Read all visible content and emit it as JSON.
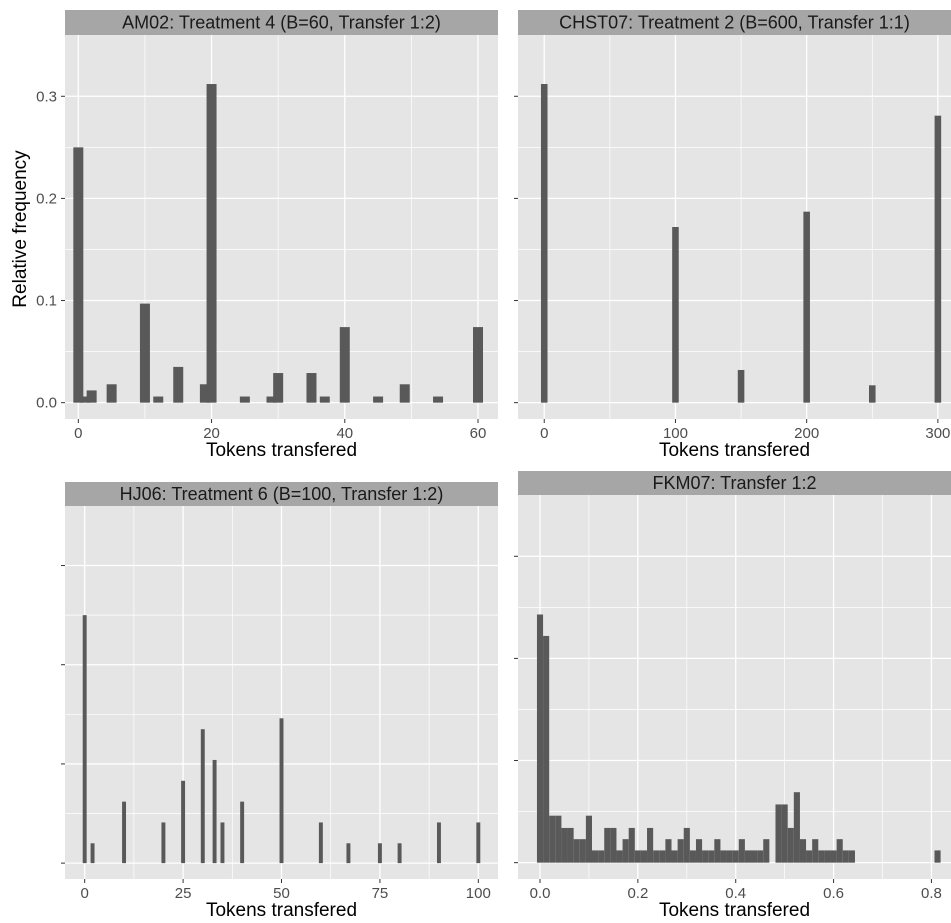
{
  "ylabel": "Relative frequency",
  "colors": {
    "panel_bg": "#e5e5e5",
    "grid": "#ffffff",
    "strip_bg": "#a6a6a6",
    "bar": "#595959",
    "tick": "#4d4d4d"
  },
  "chart_data": [
    {
      "type": "bar",
      "title": "AM02: Treatment 4  (B=60, Transfer 1:2)",
      "xlabel": "Tokens transfered",
      "ylabel": "Relative frequency",
      "xlim": [
        -2,
        63
      ],
      "ylim": [
        -0.016,
        0.36
      ],
      "xticks": [
        0,
        20,
        40,
        60
      ],
      "xtick_labels": [
        "0",
        "20",
        "40",
        "60"
      ],
      "yticks": [
        0.0,
        0.1,
        0.2,
        0.3
      ],
      "ytick_labels": [
        "0.0",
        "0.1",
        "0.2",
        "0.3"
      ],
      "x": [
        0,
        1,
        2,
        5,
        10,
        12,
        15,
        19,
        20,
        25,
        29,
        30,
        35,
        37,
        40,
        45,
        49,
        54,
        60
      ],
      "values": [
        0.25,
        0.006,
        0.012,
        0.018,
        0.097,
        0.006,
        0.035,
        0.018,
        0.312,
        0.006,
        0.006,
        0.029,
        0.029,
        0.006,
        0.074,
        0.006,
        0.018,
        0.006,
        0.074
      ],
      "bar_width": 1.5
    },
    {
      "type": "bar",
      "title": "CHST07: Treatment 2  (B=600, Transfer 1:1)",
      "xlabel": "Tokens transfered",
      "ylabel": "",
      "xlim": [
        -20,
        310
      ],
      "ylim": [
        -0.016,
        0.36
      ],
      "xticks": [
        0,
        100,
        200,
        300
      ],
      "xtick_labels": [
        "0",
        "100",
        "200",
        "300"
      ],
      "yticks": [
        0.0,
        0.1,
        0.2,
        0.3
      ],
      "ytick_labels": [],
      "x": [
        0,
        100,
        150,
        200,
        250,
        300
      ],
      "values": [
        0.312,
        0.172,
        0.032,
        0.187,
        0.017,
        0.281
      ],
      "bar_width": 5
    },
    {
      "type": "bar",
      "title": "HJ06: Treatment 6  (B=100, Transfer 1:2)",
      "xlabel": "Tokens transfered",
      "ylabel": "",
      "xlim": [
        -5,
        105
      ],
      "ylim": [
        -0.016,
        0.36
      ],
      "xticks": [
        0,
        25,
        50,
        75,
        100
      ],
      "xtick_labels": [
        "0",
        "25",
        "50",
        "75",
        "100"
      ],
      "yticks": [
        0.0,
        0.1,
        0.2,
        0.3
      ],
      "ytick_labels": [],
      "x": [
        0,
        2,
        10,
        20,
        25,
        30,
        33,
        35,
        40,
        50,
        60,
        67,
        75,
        80,
        90,
        100
      ],
      "values": [
        0.25,
        0.02,
        0.062,
        0.041,
        0.083,
        0.135,
        0.104,
        0.041,
        0.062,
        0.146,
        0.041,
        0.02,
        0.02,
        0.02,
        0.041,
        0.041
      ],
      "bar_width": 1
    },
    {
      "type": "bar",
      "title": "FKM07: Transfer 1:2",
      "xlabel": "Tokens transfered",
      "ylabel": "",
      "xlim": [
        -0.045,
        0.84
      ],
      "ylim": [
        -0.016,
        0.36
      ],
      "xticks": [
        0.0,
        0.2,
        0.4,
        0.6,
        0.8
      ],
      "xtick_labels": [
        "0.0",
        "0.2",
        "0.4",
        "0.6",
        "0.8"
      ],
      "yticks": [
        0.0,
        0.1,
        0.2,
        0.3
      ],
      "ytick_labels": [],
      "x": [
        0.0,
        0.0125,
        0.025,
        0.0375,
        0.05,
        0.0625,
        0.075,
        0.0875,
        0.1,
        0.1125,
        0.125,
        0.1375,
        0.15,
        0.1625,
        0.175,
        0.1875,
        0.2,
        0.2125,
        0.225,
        0.2375,
        0.25,
        0.2625,
        0.275,
        0.2875,
        0.3,
        0.3125,
        0.325,
        0.3375,
        0.35,
        0.3625,
        0.375,
        0.3875,
        0.4,
        0.4125,
        0.425,
        0.4375,
        0.45,
        0.4625,
        0.475,
        0.4875,
        0.5,
        0.5125,
        0.525,
        0.5375,
        0.55,
        0.5625,
        0.575,
        0.5875,
        0.6,
        0.6125,
        0.625,
        0.6375,
        0.65,
        0.8125
      ],
      "values": [
        0.243,
        0.222,
        0.046,
        0.046,
        0.034,
        0.034,
        0.023,
        0.023,
        0.046,
        0.012,
        0.012,
        0.034,
        0.034,
        0.012,
        0.023,
        0.034,
        0.012,
        0.012,
        0.034,
        0.012,
        0.012,
        0.023,
        0.012,
        0.023,
        0.034,
        0.012,
        0.023,
        0.012,
        0.012,
        0.023,
        0.012,
        0.012,
        0.012,
        0.023,
        0.012,
        0.012,
        0.012,
        0.023,
        0.0,
        0.057,
        0.057,
        0.034,
        0.069,
        0.023,
        0.012,
        0.023,
        0.012,
        0.012,
        0.012,
        0.023,
        0.012,
        0.012,
        0.0,
        0.012
      ],
      "bar_width": 0.0125
    }
  ]
}
